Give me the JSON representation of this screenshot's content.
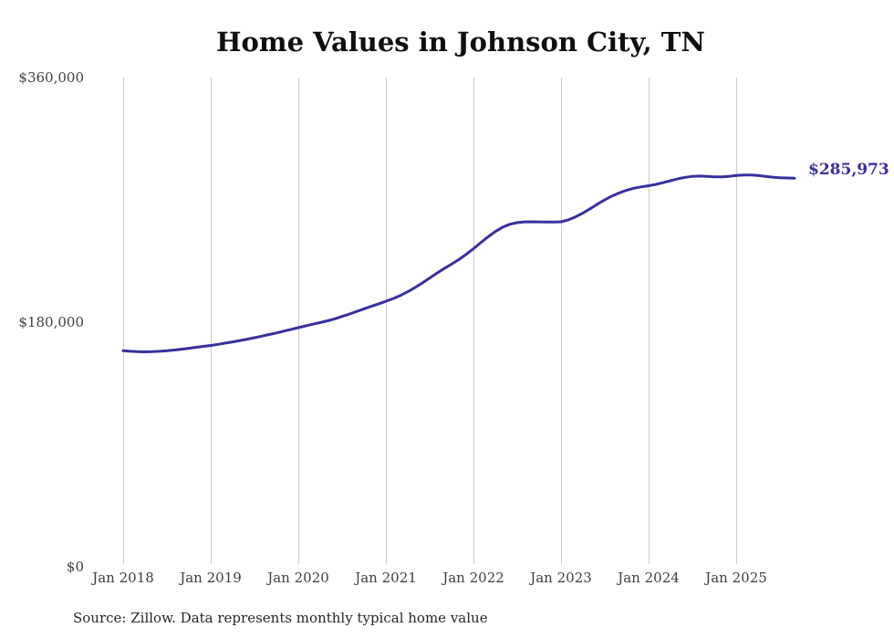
{
  "chart": {
    "title": "Home Values in Johnson City, TN",
    "source_note": "Source: Zillow. Data represents monthly typical home value",
    "end_label": "$285,973",
    "colors": {
      "line": "#37309e",
      "gridline": "#cbcbcb",
      "title_text": "#0f0f0f",
      "tick_text": "#3f3f3f",
      "source_text": "#262626",
      "background": "#ffffff"
    }
  },
  "chart_data": {
    "type": "line",
    "title": "Home Values in Johnson City, TN",
    "series_name": "Monthly typical home value",
    "frequency": "monthly",
    "x_start": "2018-01",
    "x_end": "2025-09",
    "ylim": [
      0,
      360000
    ],
    "grid": "vertical-only",
    "legend": "none",
    "final_value": 285973,
    "y_ticks": [
      {
        "label": "$0",
        "value": 0
      },
      {
        "label": "$180,000",
        "value": 180000
      },
      {
        "label": "$360,000",
        "value": 360000
      }
    ],
    "x_ticks": [
      {
        "label": "Jan 2018",
        "month_index": 0
      },
      {
        "label": "Jan 2019",
        "month_index": 12
      },
      {
        "label": "Jan 2020",
        "month_index": 24
      },
      {
        "label": "Jan 2021",
        "month_index": 36
      },
      {
        "label": "Jan 2022",
        "month_index": 48
      },
      {
        "label": "Jan 2023",
        "month_index": 60
      },
      {
        "label": "Jan 2024",
        "month_index": 72
      },
      {
        "label": "Jan 2025",
        "month_index": 84
      }
    ],
    "months": [
      "2018-01",
      "2018-02",
      "2018-03",
      "2018-04",
      "2018-05",
      "2018-06",
      "2018-07",
      "2018-08",
      "2018-09",
      "2018-10",
      "2018-11",
      "2018-12",
      "2019-01",
      "2019-02",
      "2019-03",
      "2019-04",
      "2019-05",
      "2019-06",
      "2019-07",
      "2019-08",
      "2019-09",
      "2019-10",
      "2019-11",
      "2019-12",
      "2020-01",
      "2020-02",
      "2020-03",
      "2020-04",
      "2020-05",
      "2020-06",
      "2020-07",
      "2020-08",
      "2020-09",
      "2020-10",
      "2020-11",
      "2020-12",
      "2021-01",
      "2021-02",
      "2021-03",
      "2021-04",
      "2021-05",
      "2021-06",
      "2021-07",
      "2021-08",
      "2021-09",
      "2021-10",
      "2021-11",
      "2021-12",
      "2022-01",
      "2022-02",
      "2022-03",
      "2022-04",
      "2022-05",
      "2022-06",
      "2022-07",
      "2022-08",
      "2022-09",
      "2022-10",
      "2022-11",
      "2022-12",
      "2023-01",
      "2023-02",
      "2023-03",
      "2023-04",
      "2023-05",
      "2023-06",
      "2023-07",
      "2023-08",
      "2023-09",
      "2023-10",
      "2023-11",
      "2023-12",
      "2024-01",
      "2024-02",
      "2024-03",
      "2024-04",
      "2024-05",
      "2024-06",
      "2024-07",
      "2024-08",
      "2024-09",
      "2024-10",
      "2024-11",
      "2024-12",
      "2025-01",
      "2025-02",
      "2025-03",
      "2025-04",
      "2025-05",
      "2025-06",
      "2025-07",
      "2025-08",
      "2025-09"
    ],
    "values": [
      159000,
      158600,
      158300,
      158200,
      158300,
      158600,
      159000,
      159500,
      160100,
      160800,
      161500,
      162200,
      162900,
      163700,
      164600,
      165500,
      166500,
      167500,
      168600,
      169700,
      170900,
      172100,
      173400,
      174700,
      176000,
      177300,
      178500,
      179700,
      181000,
      182500,
      184200,
      186000,
      187900,
      189800,
      191700,
      193500,
      195400,
      197400,
      199700,
      202400,
      205500,
      208900,
      212500,
      216100,
      219500,
      222700,
      226100,
      229900,
      234100,
      238500,
      242800,
      246700,
      249900,
      252100,
      253300,
      253800,
      253900,
      253800,
      253700,
      253700,
      253900,
      255300,
      257500,
      260300,
      263500,
      266900,
      270100,
      272900,
      275200,
      277100,
      278600,
      279600,
      280400,
      281400,
      282700,
      284100,
      285500,
      286600,
      287300,
      287500,
      287300,
      287000,
      287000,
      287300,
      287900,
      288300,
      288300,
      287900,
      287300,
      286700,
      286300,
      286100,
      285973
    ]
  }
}
